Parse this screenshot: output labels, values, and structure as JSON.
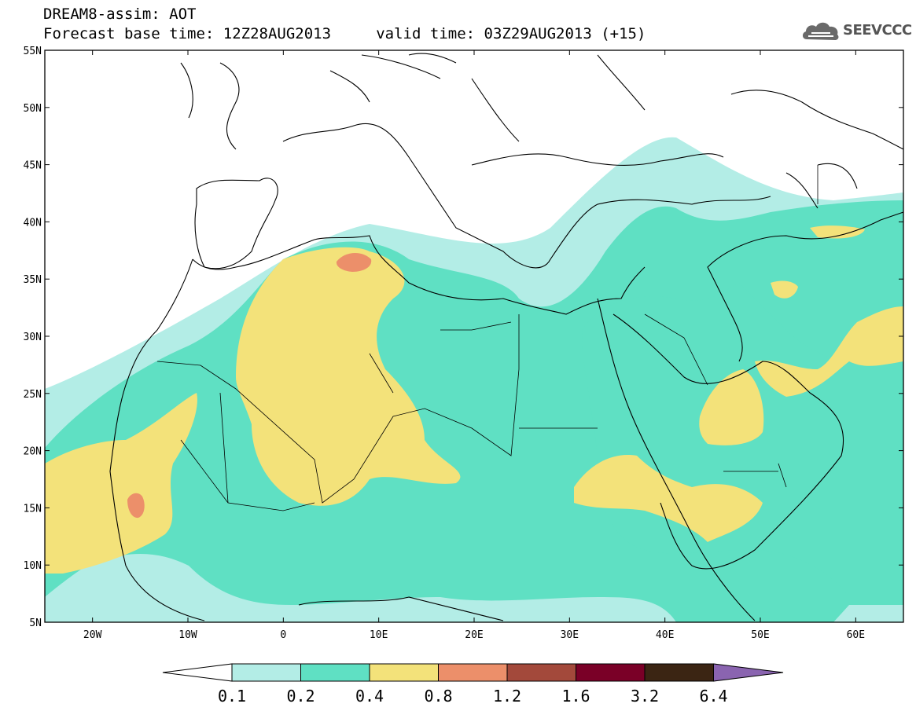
{
  "header": {
    "title_line1": "DREAM8-assim: AOT",
    "title_line2": "Forecast base time: 12Z28AUG2013     valid time: 03Z29AUG2013 (+15)"
  },
  "logo": {
    "text": "SEEVCCC",
    "icon": "cloud-icon"
  },
  "map": {
    "variable": "AOT",
    "lon_range": [
      -25,
      65
    ],
    "lat_range": [
      5,
      55
    ],
    "lat_ticks": [
      {
        "value": 55,
        "label": "55N"
      },
      {
        "value": 50,
        "label": "50N"
      },
      {
        "value": 45,
        "label": "45N"
      },
      {
        "value": 40,
        "label": "40N"
      },
      {
        "value": 35,
        "label": "35N"
      },
      {
        "value": 30,
        "label": "30N"
      },
      {
        "value": 25,
        "label": "25N"
      },
      {
        "value": 20,
        "label": "20N"
      },
      {
        "value": 15,
        "label": "15N"
      },
      {
        "value": 10,
        "label": "10N"
      },
      {
        "value": 5,
        "label": "5N"
      }
    ],
    "lon_ticks": [
      {
        "value": -20,
        "label": "20W"
      },
      {
        "value": -10,
        "label": "10W"
      },
      {
        "value": 0,
        "label": "0"
      },
      {
        "value": 10,
        "label": "10E"
      },
      {
        "value": 20,
        "label": "20E"
      },
      {
        "value": 30,
        "label": "30E"
      },
      {
        "value": 40,
        "label": "40E"
      },
      {
        "value": 50,
        "label": "50E"
      },
      {
        "value": 60,
        "label": "60E"
      }
    ],
    "colors": {
      "c01": "#b3ede6",
      "c02": "#5fe0c3",
      "c04": "#f3e27a",
      "c08": "#ec8f6a",
      "c12": "#a3493b",
      "c16": "#7a0027",
      "c32": "#3b2513",
      "c64": "#8a64b0"
    }
  },
  "colorbar": {
    "levels": [
      "0.1",
      "0.2",
      "0.4",
      "0.8",
      "1.2",
      "1.6",
      "3.2",
      "6.4"
    ],
    "colors": [
      "#ffffff",
      "#b3ede6",
      "#5fe0c3",
      "#f3e27a",
      "#ec8f6a",
      "#a3493b",
      "#7a0027",
      "#3b2513",
      "#8a64b0"
    ]
  }
}
